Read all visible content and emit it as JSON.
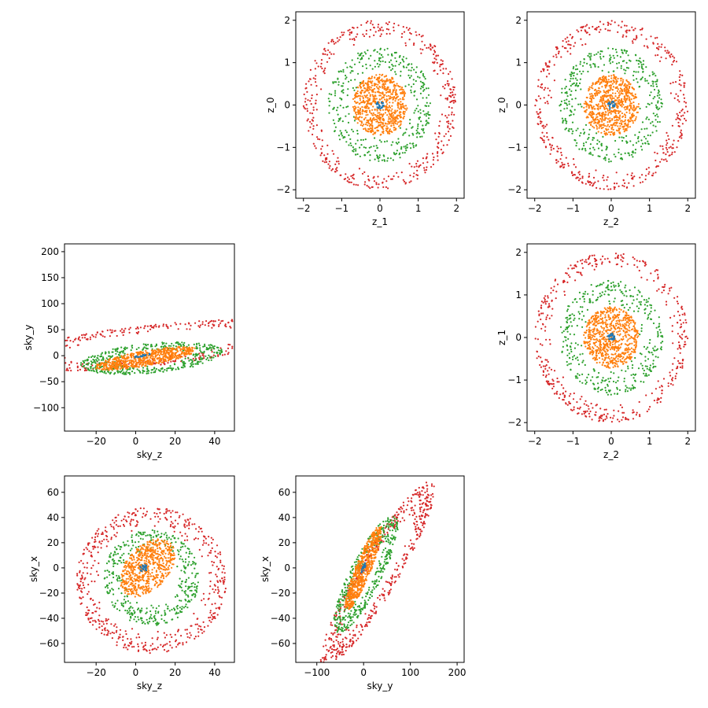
{
  "figure": {
    "description_tag": "Corner plot of latent coordinates z_0..z_2 and sky coordinates (sky_x, sky_y, sky_z), colored by concentric shell"
  },
  "colors": {
    "axes": "#000000",
    "background": "#ffffff",
    "shell_core": "#1f77b4",
    "shell_inner": "#ff7f0e",
    "shell_middle": "#2ca02c",
    "shell_outer": "#d62728"
  },
  "chart_data": [
    {
      "type": "scatter",
      "xlabel": "z_1",
      "ylabel": "z_0",
      "xlim": [
        -2.2,
        2.2
      ],
      "ylim": [
        -2.2,
        2.2
      ],
      "xticks": [
        -2,
        -1,
        0,
        1,
        2
      ],
      "yticks": [
        -2,
        -1,
        0,
        1,
        2
      ],
      "series": [
        {
          "color": "#d62728",
          "shape": "ring",
          "cx": 0,
          "cy": 0,
          "r_min": 1.55,
          "r_max": 2.0,
          "n": 420
        },
        {
          "color": "#2ca02c",
          "shape": "ring",
          "cx": 0,
          "cy": 0,
          "r_min": 0.7,
          "r_max": 1.35,
          "n": 380
        },
        {
          "color": "#ff7f0e",
          "shape": "disk",
          "cx": 0,
          "cy": 0,
          "r_min": 0.0,
          "r_max": 0.72,
          "n": 700
        },
        {
          "color": "#1f77b4",
          "shape": "disk",
          "cx": 0,
          "cy": 0,
          "r_min": 0.0,
          "r_max": 0.1,
          "n": 25
        }
      ]
    },
    {
      "type": "scatter",
      "xlabel": "z_2",
      "ylabel": "z_0",
      "xlim": [
        -2.2,
        2.2
      ],
      "ylim": [
        -2.2,
        2.2
      ],
      "xticks": [
        -2,
        -1,
        0,
        1,
        2
      ],
      "yticks": [
        -2,
        -1,
        0,
        1,
        2
      ],
      "series": [
        {
          "color": "#d62728",
          "shape": "ring",
          "cx": 0,
          "cy": 0,
          "r_min": 1.55,
          "r_max": 2.0,
          "n": 420
        },
        {
          "color": "#2ca02c",
          "shape": "ring",
          "cx": 0,
          "cy": 0,
          "r_min": 0.7,
          "r_max": 1.35,
          "n": 380
        },
        {
          "color": "#ff7f0e",
          "shape": "disk",
          "cx": 0,
          "cy": 0,
          "r_min": 0.0,
          "r_max": 0.72,
          "n": 700
        },
        {
          "color": "#1f77b4",
          "shape": "disk",
          "cx": 0,
          "cy": 0,
          "r_min": 0.0,
          "r_max": 0.1,
          "n": 25
        }
      ]
    },
    {
      "type": "scatter",
      "xlabel": "sky_z",
      "ylabel": "sky_y",
      "xlim": [
        -36,
        50
      ],
      "ylim": [
        -145,
        215
      ],
      "xticks": [
        -20,
        0,
        20,
        40
      ],
      "yticks": [
        -100,
        -50,
        0,
        50,
        100,
        150,
        200
      ],
      "series": [
        {
          "color": "#d62728",
          "shape": "ellipse",
          "cx": 8,
          "cy": 20,
          "rx": 36,
          "ry": 80,
          "angle_deg": -62,
          "r_min": 0.6,
          "r_max": 1.0,
          "n": 520
        },
        {
          "color": "#2ca02c",
          "shape": "ellipse",
          "cx": 8,
          "cy": -5,
          "rx": 26,
          "ry": 40,
          "angle_deg": -55,
          "r_min": 0.45,
          "r_max": 1.0,
          "n": 420
        },
        {
          "color": "#ff7f0e",
          "shape": "ellipse",
          "cx": 5,
          "cy": -5,
          "rx": 12,
          "ry": 32,
          "angle_deg": -50,
          "r_min": 0.0,
          "r_max": 1.0,
          "n": 650
        },
        {
          "color": "#1f77b4",
          "shape": "ellipse",
          "cx": 3,
          "cy": 0,
          "rx": 2,
          "ry": 6,
          "angle_deg": -50,
          "r_min": 0.0,
          "r_max": 1.0,
          "n": 25
        }
      ]
    },
    {
      "type": "scatter",
      "xlabel": "z_2",
      "ylabel": "z_1",
      "xlim": [
        -2.2,
        2.2
      ],
      "ylim": [
        -2.2,
        2.2
      ],
      "xticks": [
        -2,
        -1,
        0,
        1,
        2
      ],
      "yticks": [
        -2,
        -1,
        0,
        1,
        2
      ],
      "series": [
        {
          "color": "#d62728",
          "shape": "ring",
          "cx": 0,
          "cy": 0,
          "r_min": 1.55,
          "r_max": 2.0,
          "n": 420
        },
        {
          "color": "#2ca02c",
          "shape": "ring",
          "cx": 0,
          "cy": 0,
          "r_min": 0.7,
          "r_max": 1.35,
          "n": 380
        },
        {
          "color": "#ff7f0e",
          "shape": "disk",
          "cx": 0,
          "cy": 0,
          "r_min": 0.0,
          "r_max": 0.72,
          "n": 700
        },
        {
          "color": "#1f77b4",
          "shape": "disk",
          "cx": 0,
          "cy": 0,
          "r_min": 0.0,
          "r_max": 0.1,
          "n": 25
        }
      ]
    },
    {
      "type": "scatter",
      "xlabel": "sky_z",
      "ylabel": "sky_x",
      "xlim": [
        -36,
        50
      ],
      "ylim": [
        -75,
        73
      ],
      "xticks": [
        -20,
        0,
        20,
        40
      ],
      "yticks": [
        -60,
        -40,
        -20,
        0,
        20,
        40,
        60
      ],
      "series": [
        {
          "color": "#d62728",
          "shape": "ellipse",
          "cx": 8,
          "cy": -10,
          "rx": 38,
          "ry": 58,
          "angle_deg": 0,
          "r_min": 0.7,
          "r_max": 1.0,
          "n": 520
        },
        {
          "color": "#2ca02c",
          "shape": "ellipse",
          "cx": 8,
          "cy": -8,
          "rx": 24,
          "ry": 38,
          "angle_deg": 0,
          "r_min": 0.55,
          "r_max": 1.0,
          "n": 420
        },
        {
          "color": "#ff7f0e",
          "shape": "ellipse",
          "cx": 6,
          "cy": 0,
          "rx": 12,
          "ry": 24,
          "angle_deg": -20,
          "r_min": 0.0,
          "r_max": 1.0,
          "n": 650
        },
        {
          "color": "#1f77b4",
          "shape": "ellipse",
          "cx": 4,
          "cy": 0,
          "rx": 2,
          "ry": 3,
          "angle_deg": 0,
          "r_min": 0.0,
          "r_max": 1.0,
          "n": 25
        }
      ]
    },
    {
      "type": "scatter",
      "xlabel": "sky_y",
      "ylabel": "sky_x",
      "xlim": [
        -145,
        215
      ],
      "ylim": [
        -75,
        73
      ],
      "xticks": [
        -100,
        0,
        100,
        200
      ],
      "yticks": [
        -60,
        -40,
        -20,
        0,
        20,
        40,
        60
      ],
      "series": [
        {
          "color": "#d62728",
          "shape": "ellipse",
          "cx": 30,
          "cy": -5,
          "rx": 140,
          "ry": 26,
          "angle_deg": 30,
          "r_min": 0.55,
          "r_max": 1.0,
          "n": 520
        },
        {
          "color": "#2ca02c",
          "shape": "ellipse",
          "cx": 5,
          "cy": -5,
          "rx": 80,
          "ry": 22,
          "angle_deg": 32,
          "r_min": 0.45,
          "r_max": 1.0,
          "n": 420
        },
        {
          "color": "#ff7f0e",
          "shape": "ellipse",
          "cx": 0,
          "cy": 0,
          "rx": 50,
          "ry": 12,
          "angle_deg": 40,
          "r_min": 0.0,
          "r_max": 1.0,
          "n": 650
        },
        {
          "color": "#1f77b4",
          "shape": "ellipse",
          "cx": 0,
          "cy": 0,
          "rx": 6,
          "ry": 2,
          "angle_deg": 40,
          "r_min": 0.0,
          "r_max": 1.0,
          "n": 25
        }
      ]
    }
  ]
}
